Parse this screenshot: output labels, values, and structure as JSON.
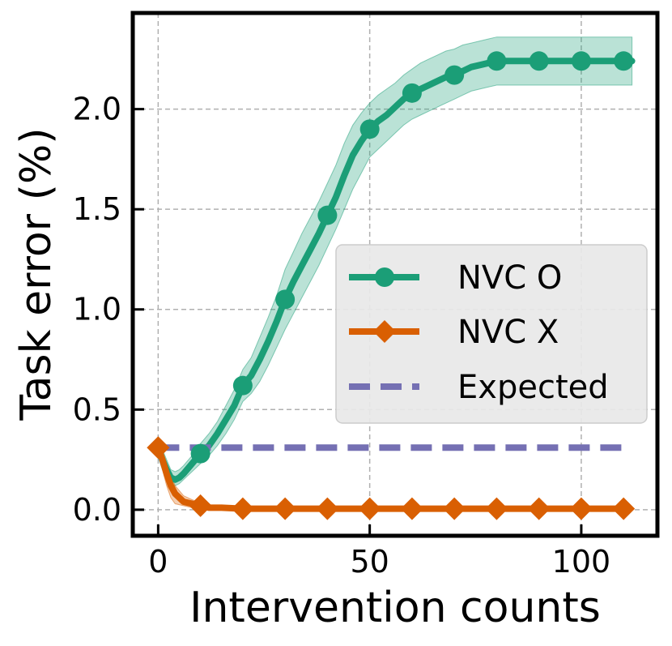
{
  "chart_data": {
    "type": "line",
    "title": "",
    "xlabel": "Intervention counts",
    "ylabel": "Task error (%)",
    "xlim": [
      -6,
      118
    ],
    "ylim": [
      -0.13,
      2.48
    ],
    "xticks": [
      0,
      50,
      100
    ],
    "xtick_labels": [
      "0",
      "50",
      "100"
    ],
    "yticks": [
      0.0,
      0.5,
      1.0,
      1.5,
      2.0
    ],
    "ytick_labels": [
      "0.0",
      "0.5",
      "1.0",
      "1.5",
      "2.0"
    ],
    "grid": true,
    "legend_position": "center-right",
    "series": [
      {
        "name": "NVC O",
        "color": "#1b9e77",
        "marker": "circle",
        "curve": {
          "x": [
            0,
            1,
            2,
            3,
            4,
            5,
            6,
            8,
            10,
            12,
            14,
            16,
            18,
            20,
            22,
            24,
            26,
            28,
            30,
            32,
            34,
            36,
            38,
            40,
            42,
            44,
            46,
            48,
            50,
            52,
            54,
            56,
            58,
            60,
            62,
            64,
            66,
            68,
            70,
            72,
            74,
            76,
            78,
            80,
            85,
            90,
            95,
            100,
            105,
            110,
            112
          ],
          "y": [
            0.31,
            0.25,
            0.2,
            0.16,
            0.15,
            0.16,
            0.18,
            0.23,
            0.28,
            0.32,
            0.38,
            0.45,
            0.52,
            0.62,
            0.67,
            0.75,
            0.84,
            0.94,
            1.05,
            1.14,
            1.22,
            1.3,
            1.38,
            1.47,
            1.56,
            1.67,
            1.77,
            1.84,
            1.9,
            1.94,
            1.97,
            2.01,
            2.05,
            2.08,
            2.1,
            2.12,
            2.14,
            2.16,
            2.17,
            2.19,
            2.21,
            2.22,
            2.23,
            2.24,
            2.24,
            2.24,
            2.24,
            2.24,
            2.24,
            2.24,
            2.24
          ],
          "lower": [
            0.26,
            0.2,
            0.16,
            0.13,
            0.12,
            0.13,
            0.15,
            0.19,
            0.23,
            0.27,
            0.32,
            0.38,
            0.45,
            0.54,
            0.58,
            0.64,
            0.72,
            0.81,
            0.9,
            0.98,
            1.06,
            1.14,
            1.22,
            1.31,
            1.4,
            1.5,
            1.6,
            1.68,
            1.76,
            1.8,
            1.84,
            1.88,
            1.92,
            1.95,
            1.97,
            1.99,
            2.01,
            2.03,
            2.05,
            2.07,
            2.09,
            2.1,
            2.11,
            2.12,
            2.12,
            2.12,
            2.12,
            2.12,
            2.12,
            2.12,
            2.12
          ],
          "upper": [
            0.36,
            0.3,
            0.25,
            0.2,
            0.19,
            0.2,
            0.22,
            0.27,
            0.33,
            0.38,
            0.44,
            0.52,
            0.6,
            0.7,
            0.76,
            0.86,
            0.96,
            1.07,
            1.2,
            1.29,
            1.38,
            1.46,
            1.54,
            1.63,
            1.72,
            1.83,
            1.92,
            1.98,
            2.03,
            2.07,
            2.1,
            2.13,
            2.17,
            2.2,
            2.23,
            2.25,
            2.27,
            2.29,
            2.3,
            2.32,
            2.33,
            2.34,
            2.35,
            2.36,
            2.36,
            2.36,
            2.36,
            2.36,
            2.36,
            2.36,
            2.36
          ]
        },
        "markers": {
          "x": [
            10,
            20,
            30,
            40,
            50,
            60,
            70,
            80,
            90,
            100,
            110
          ],
          "y": [
            0.28,
            0.62,
            1.05,
            1.47,
            1.9,
            2.08,
            2.17,
            2.24,
            2.24,
            2.24,
            2.24
          ]
        }
      },
      {
        "name": "NVC X",
        "color": "#d95f02",
        "marker": "diamond",
        "curve": {
          "x": [
            0,
            1,
            2,
            3,
            4,
            6,
            8,
            10,
            12,
            15,
            20,
            30,
            40,
            50,
            60,
            70,
            80,
            90,
            100,
            110
          ],
          "y": [
            0.31,
            0.25,
            0.18,
            0.12,
            0.08,
            0.04,
            0.03,
            0.02,
            0.01,
            0.01,
            0.005,
            0.005,
            0.005,
            0.005,
            0.005,
            0.005,
            0.005,
            0.005,
            0.005,
            0.005
          ],
          "lower": [
            0.31,
            0.2,
            0.12,
            0.06,
            0.03,
            0.02,
            0.01,
            0.005,
            0.0,
            0.0,
            0.0,
            0.0,
            0.0,
            0.0,
            0.0,
            0.0,
            0.0,
            0.0,
            0.0,
            0.0
          ],
          "upper": [
            0.31,
            0.29,
            0.23,
            0.17,
            0.12,
            0.07,
            0.05,
            0.035,
            0.02,
            0.015,
            0.01,
            0.01,
            0.01,
            0.01,
            0.01,
            0.01,
            0.01,
            0.01,
            0.01,
            0.01
          ]
        },
        "markers": {
          "x": [
            0,
            10,
            20,
            30,
            40,
            50,
            60,
            70,
            80,
            90,
            100,
            110
          ],
          "y": [
            0.31,
            0.02,
            0.005,
            0.005,
            0.005,
            0.005,
            0.005,
            0.005,
            0.005,
            0.005,
            0.005,
            0.005
          ]
        }
      },
      {
        "name": "Expected",
        "color": "#7570b3",
        "line_style": "dashed",
        "curve": {
          "x": [
            0,
            110
          ],
          "y": [
            0.31,
            0.31
          ]
        }
      }
    ]
  }
}
